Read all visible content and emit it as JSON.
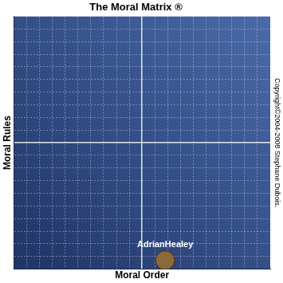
{
  "chart_data": {
    "type": "scatter",
    "title": "The Moral Matrix ®",
    "x_label": "Moral Order",
    "y_label": "Moral Rules",
    "annotations": [
      "Copyright©2004-2008 Stephane Dubois."
    ],
    "x": [
      1.8
    ],
    "series": [
      {
        "name": "AdrianHealey",
        "color": "#8a6a3a",
        "values": [
          -9.3
        ]
      }
    ],
    "xlim": [
      -10,
      10
    ],
    "ylim": [
      -10,
      10
    ],
    "xticks": [
      -10,
      -9,
      -8,
      -7,
      -6,
      -5,
      -4,
      -3,
      -2,
      -1,
      0,
      1,
      2,
      3,
      4,
      5,
      6,
      7,
      8,
      9,
      10
    ],
    "yticks": [
      -10,
      -9,
      -8,
      -7,
      -6,
      -5,
      -4,
      -3,
      -2,
      -1,
      0,
      1,
      2,
      3,
      4,
      5,
      6,
      7,
      8,
      9,
      10
    ],
    "grid": true,
    "tick_labels": false,
    "marker": "circle"
  }
}
